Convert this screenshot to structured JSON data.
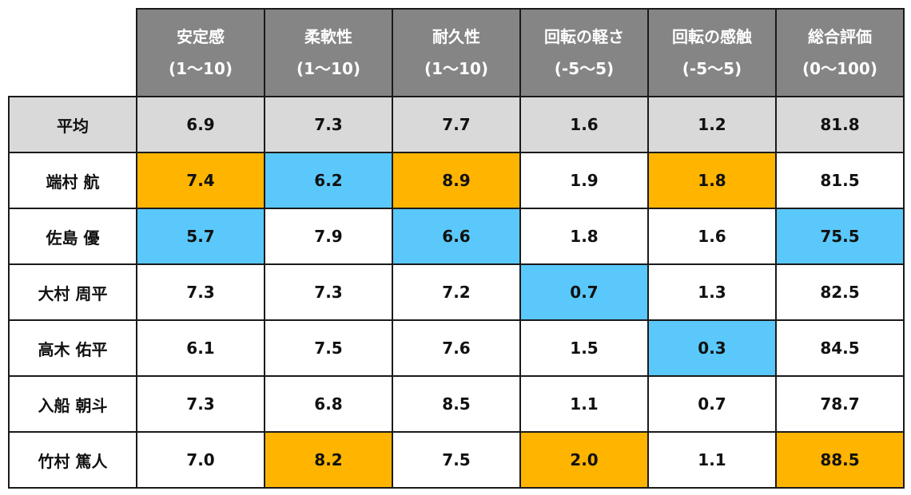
{
  "columns": [
    {
      "name": "安定感",
      "range": "(1〜10)"
    },
    {
      "name": "柔軟性",
      "range": "(1〜10)"
    },
    {
      "name": "耐久性",
      "range": "(1〜10)"
    },
    {
      "name": "回転の軽さ",
      "range": "(-5〜5)"
    },
    {
      "name": "回転の感触",
      "range": "(-5〜5)"
    },
    {
      "name": "総合評価",
      "range": "(0〜100)"
    }
  ],
  "rows": [
    {
      "label": "平均",
      "values": [
        "6.9",
        "7.3",
        "7.7",
        "1.6",
        "1.2",
        "81.8"
      ],
      "highlight": [
        "avg",
        "avg",
        "avg",
        "avg",
        "avg",
        "avg"
      ]
    },
    {
      "label": "端村 航",
      "values": [
        "7.4",
        "6.2",
        "8.9",
        "1.9",
        "1.8",
        "81.5"
      ],
      "highlight": [
        "hi",
        "lo",
        "hi",
        "",
        "hi",
        ""
      ]
    },
    {
      "label": "佐島 優",
      "values": [
        "5.7",
        "7.9",
        "6.6",
        "1.8",
        "1.6",
        "75.5"
      ],
      "highlight": [
        "lo",
        "",
        "lo",
        "",
        "",
        "lo"
      ]
    },
    {
      "label": "大村 周平",
      "values": [
        "7.3",
        "7.3",
        "7.2",
        "0.7",
        "1.3",
        "82.5"
      ],
      "highlight": [
        "",
        "",
        "",
        "lo",
        "",
        ""
      ]
    },
    {
      "label": "高木 佑平",
      "values": [
        "6.1",
        "7.5",
        "7.6",
        "1.5",
        "0.3",
        "84.5"
      ],
      "highlight": [
        "",
        "",
        "",
        "",
        "lo",
        ""
      ]
    },
    {
      "label": "入船 朝斗",
      "values": [
        "7.3",
        "6.8",
        "8.5",
        "1.1",
        "0.7",
        "78.7"
      ],
      "highlight": [
        "",
        "",
        "",
        "",
        "",
        ""
      ]
    },
    {
      "label": "竹村 篤人",
      "values": [
        "7.0",
        "8.2",
        "7.5",
        "2.0",
        "1.1",
        "88.5"
      ],
      "highlight": [
        "",
        "hi",
        "",
        "hi",
        "",
        "hi"
      ]
    }
  ],
  "colors": {
    "high": "#ffb400",
    "low": "#5ac8fa",
    "header": "#858585",
    "average": "#d9d9d9"
  }
}
